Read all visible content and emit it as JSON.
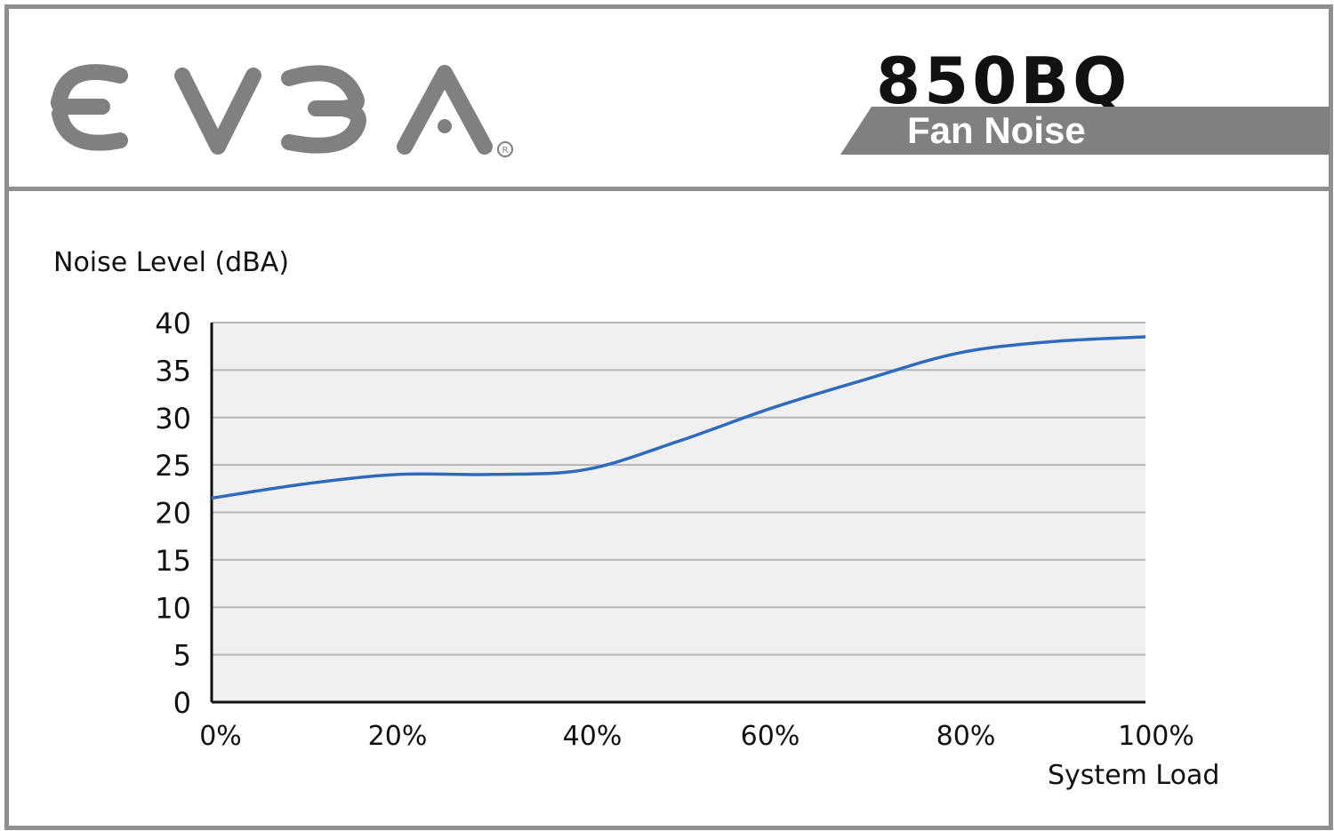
{
  "header": {
    "brand": "EVGA",
    "model": "850BQ",
    "subtitle": "Fan Noise",
    "brand_color": "#808080"
  },
  "chart_data": {
    "type": "line",
    "title": "",
    "ylabel": "Noise Level (dBA)",
    "xlabel": "System Load",
    "x": [
      0,
      10,
      20,
      30,
      40,
      50,
      60,
      70,
      80,
      90,
      100
    ],
    "x_tick_labels": [
      "0%",
      "20%",
      "40%",
      "60%",
      "80%",
      "100%"
    ],
    "x_ticks": [
      0,
      20,
      40,
      60,
      80,
      100
    ],
    "y_ticks": [
      0,
      5,
      10,
      15,
      20,
      25,
      30,
      35,
      40
    ],
    "ylim": [
      0,
      40
    ],
    "xlim": [
      0,
      100
    ],
    "series": [
      {
        "values": [
          21.5,
          23.0,
          24.0,
          24.0,
          24.5,
          27.5,
          31.0,
          34.0,
          36.8,
          38.0,
          38.5
        ],
        "color": "#2e6bbf"
      }
    ],
    "grid": true,
    "band_colors": [
      "#f0f0f0",
      "#ffffff"
    ],
    "grid_color": "#b5b5b5"
  }
}
